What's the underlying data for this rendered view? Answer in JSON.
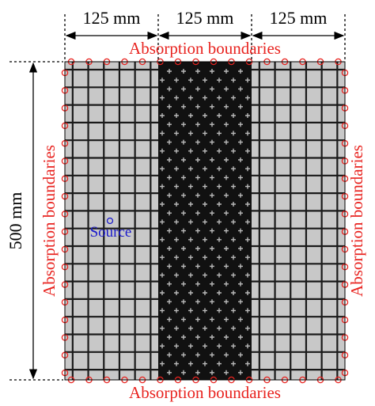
{
  "dimensions": {
    "widths": [
      "125 mm",
      "125 mm",
      "125 mm"
    ],
    "height": "500 mm"
  },
  "boundaries": {
    "top": "Absorption boundaries",
    "bottom": "Absorption boundaries",
    "left": "Absorption boundaries",
    "right": "Absorption boundaries"
  },
  "source": "Source"
}
